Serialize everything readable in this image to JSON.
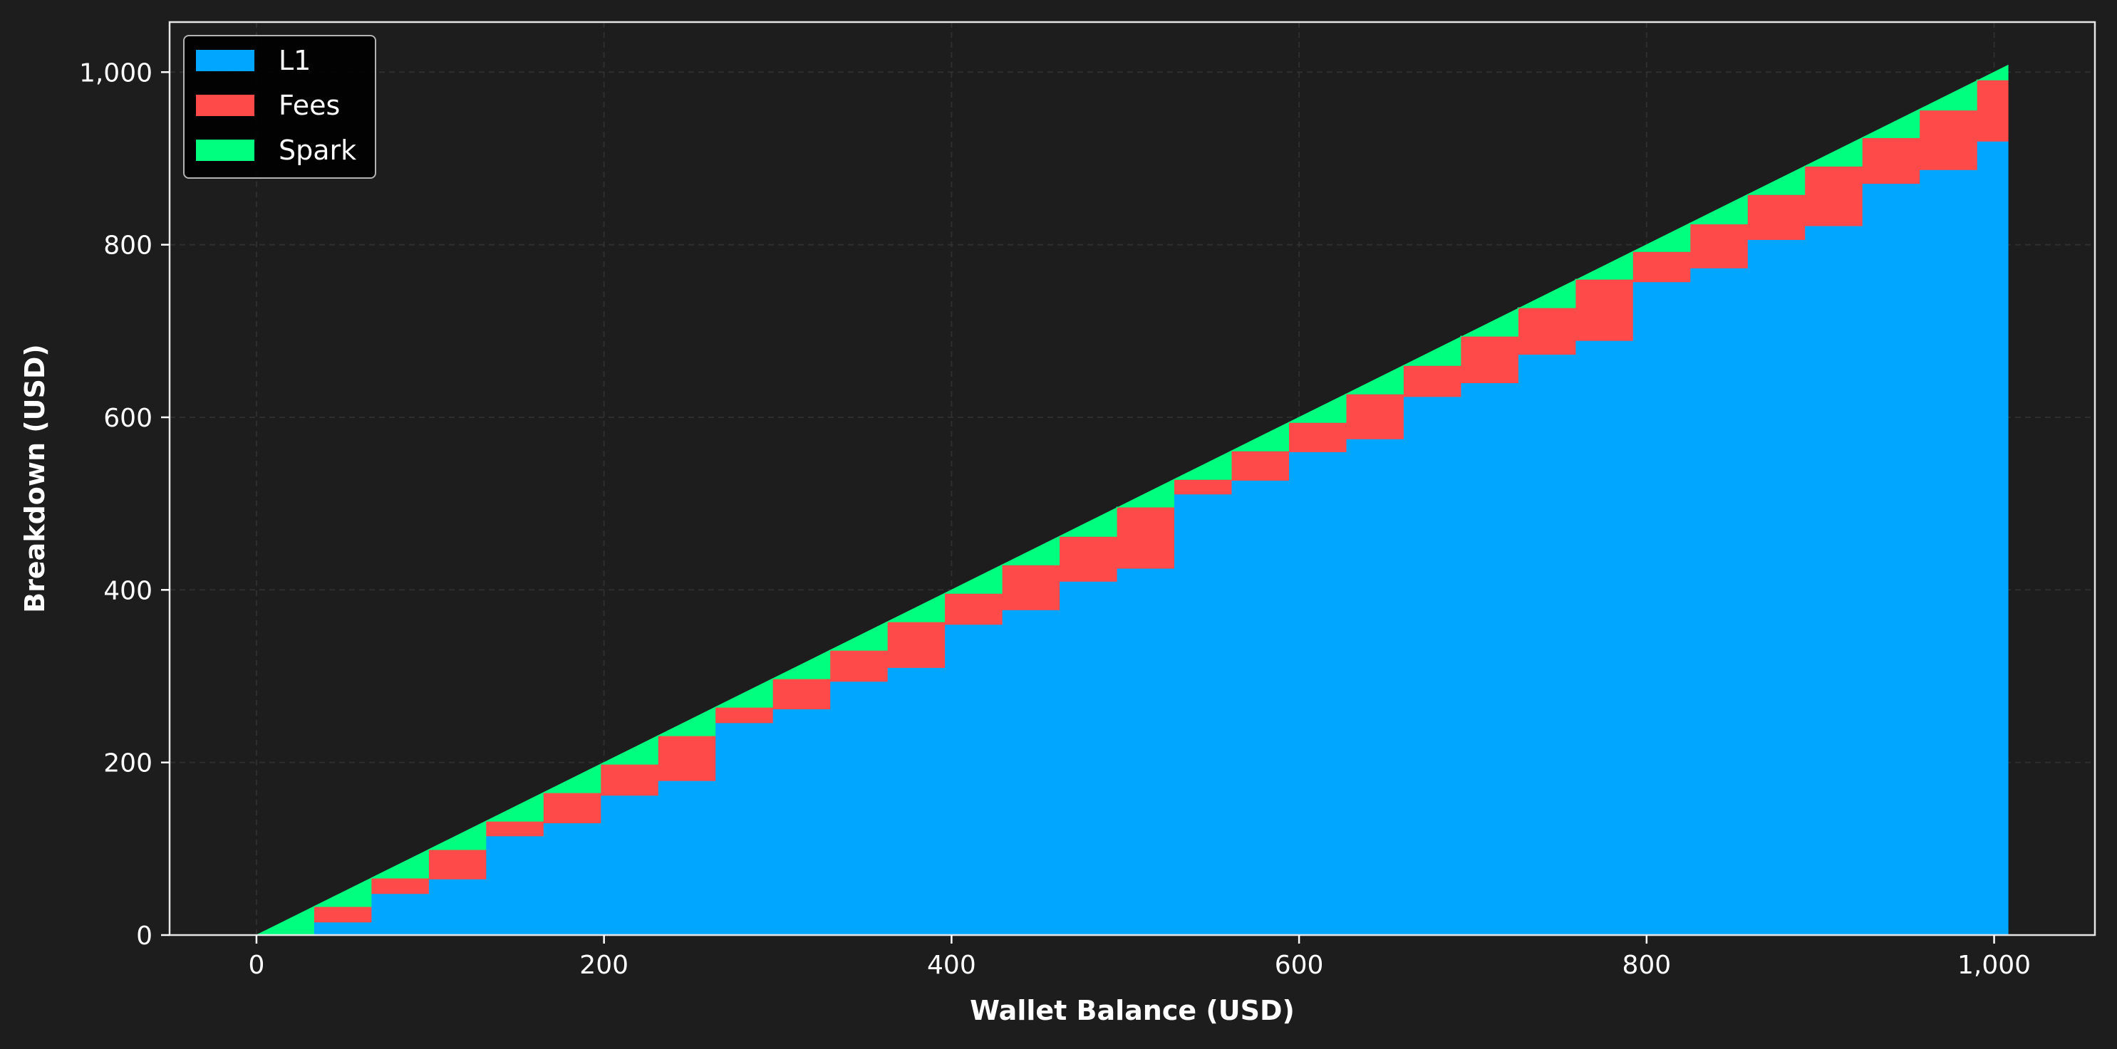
{
  "chart_data": {
    "type": "area",
    "title": "",
    "xlabel": "Wallet Balance (USD)",
    "ylabel": "Breakdown (USD)",
    "xlim": [
      -50,
      1058
    ],
    "ylim": [
      0,
      1058
    ],
    "xticks": [
      0,
      200,
      400,
      600,
      800,
      1000
    ],
    "xtick_labels": [
      "0",
      "200",
      "400",
      "600",
      "800",
      "1,000"
    ],
    "yticks": [
      0,
      200,
      400,
      600,
      800,
      1000
    ],
    "ytick_labels": [
      "0",
      "200",
      "400",
      "600",
      "800",
      "1,000"
    ],
    "grid": true,
    "legend_position": "top-left",
    "background": "#1d1d1d",
    "stacked": true,
    "step_width": 33,
    "x": [
      0,
      33,
      66,
      99,
      132,
      165,
      198,
      231,
      264,
      297,
      330,
      363,
      396,
      429,
      462,
      495,
      528,
      561,
      594,
      627,
      660,
      693,
      726,
      759,
      792,
      825,
      858,
      891,
      924,
      957,
      990
    ],
    "x_end": 1008,
    "series": [
      {
        "name": "L1",
        "color": "#00a6ff",
        "values": [
          0,
          15,
          48,
          65,
          115,
          130,
          162,
          179,
          246,
          262,
          294,
          310,
          360,
          377,
          410,
          425,
          511,
          527,
          560,
          575,
          624,
          640,
          673,
          689,
          757,
          773,
          806,
          822,
          871,
          887,
          920
        ]
      },
      {
        "name": "Fees",
        "color": "#ff4a4a",
        "values": [
          0,
          18,
          18,
          34,
          17,
          35,
          36,
          52,
          18,
          35,
          36,
          53,
          36,
          52,
          52,
          71,
          17,
          34,
          34,
          52,
          36,
          54,
          54,
          71,
          35,
          51,
          52,
          69,
          53,
          69,
          71
        ]
      },
      {
        "name": "Spark",
        "color": "#00ff7f",
        "values": [
          33,
          33,
          33,
          33,
          33,
          33,
          33,
          33,
          33,
          33,
          33,
          33,
          33,
          33,
          33,
          33,
          33,
          33,
          33,
          33,
          33,
          33,
          33,
          33,
          33,
          33,
          33,
          33,
          33,
          33,
          17
        ]
      }
    ]
  }
}
